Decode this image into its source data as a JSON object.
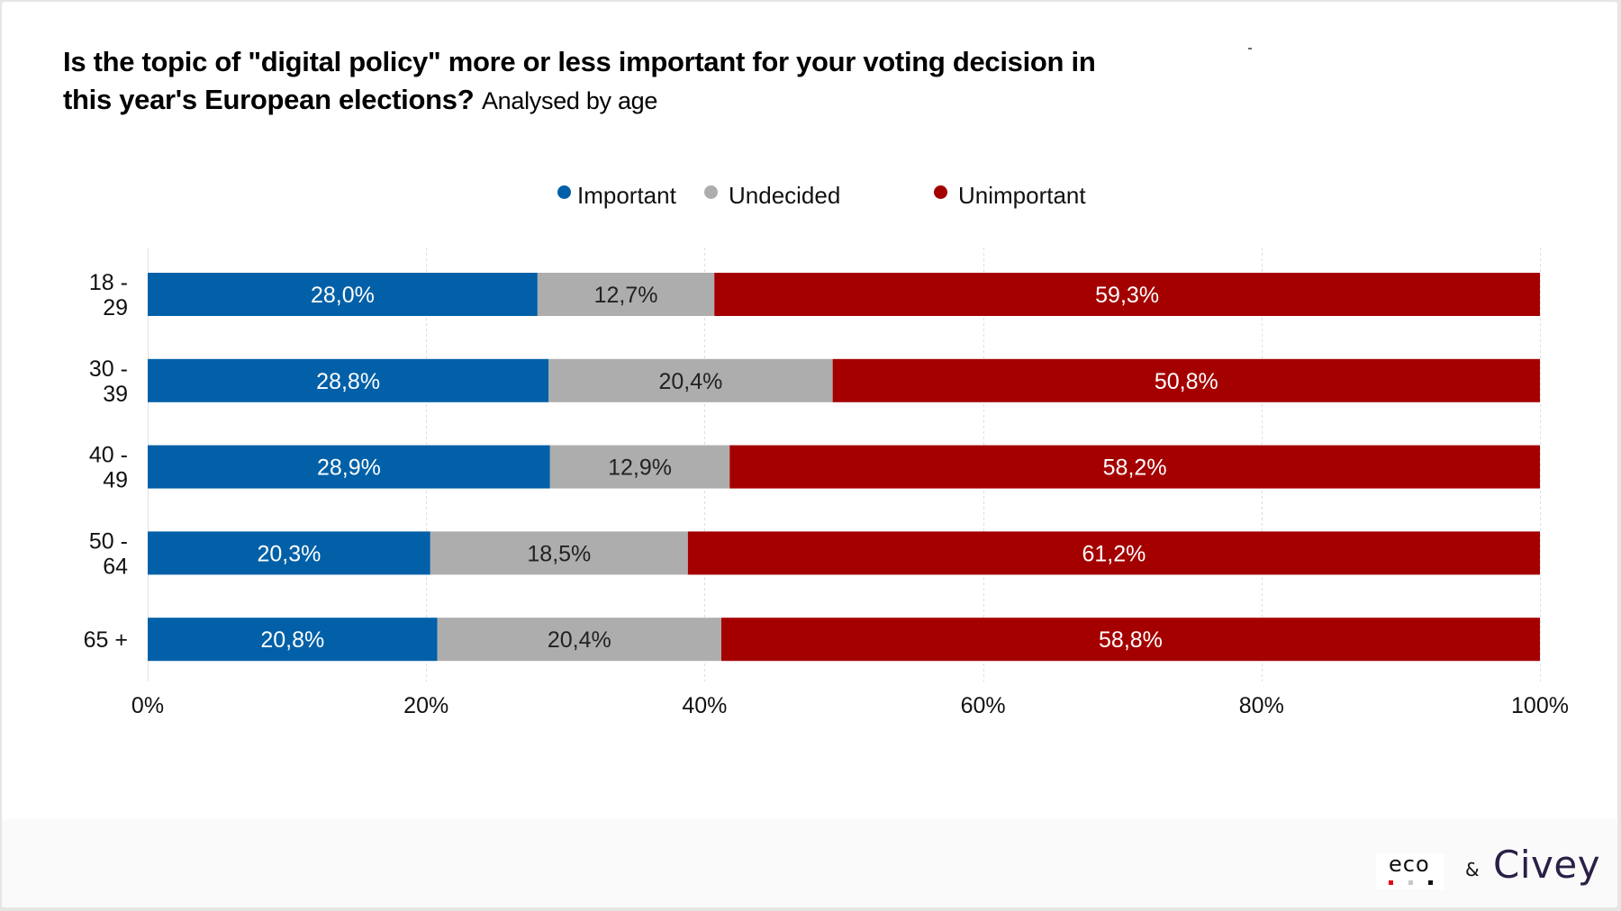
{
  "header": {
    "title": "Is the topic of \"digital policy\" more or less important for your voting decision in this year's European elections?",
    "subtitle": "Analysed by age"
  },
  "colors": {
    "important": "#0160a7",
    "undecided": "#adadad",
    "unimportant": "#a50000",
    "grid": "#dcdcdc",
    "footer_bg": "#fafafa",
    "civey": "#2b1f47"
  },
  "legend": [
    {
      "label": "Important",
      "color": "#0160a7"
    },
    {
      "label": "Undecided",
      "color": "#adadad"
    },
    {
      "label": "Unimportant",
      "color": "#a50000"
    }
  ],
  "footer": {
    "eco_logo": "eco",
    "eco_dots": [
      "#e30613",
      "#c8c8c8",
      "#111111"
    ],
    "ampersand": "&",
    "civey_logo": "Civey"
  },
  "chart_data": {
    "type": "bar",
    "orientation": "horizontal",
    "stacked": true,
    "title": "Is the topic of \"digital policy\" more or less important for your voting decision in this year's European elections?",
    "subtitle": "Analysed by age",
    "xlabel": "",
    "ylabel": "",
    "categories": [
      [
        "18 -",
        "29"
      ],
      [
        "30 -",
        "39"
      ],
      [
        "40 -",
        "49"
      ],
      [
        "50 -",
        "64"
      ],
      [
        "65 +"
      ]
    ],
    "series": [
      {
        "name": "Important",
        "color": "#0160a7",
        "label_color": "#ffffff",
        "values": [
          28.0,
          28.8,
          28.9,
          20.3,
          20.8
        ],
        "labels": [
          "28,0%",
          "28,8%",
          "28,9%",
          "20,3%",
          "20,8%"
        ]
      },
      {
        "name": "Undecided",
        "color": "#adadad",
        "label_color": "#222222",
        "values": [
          12.7,
          20.4,
          12.9,
          18.5,
          20.4
        ],
        "labels": [
          "12,7%",
          "20,4%",
          "12,9%",
          "18,5%",
          "20,4%"
        ]
      },
      {
        "name": "Unimportant",
        "color": "#a50000",
        "label_color": "#ffffff",
        "values": [
          59.3,
          50.8,
          58.2,
          61.2,
          58.8
        ],
        "labels": [
          "59,3%",
          "50,8%",
          "58,2%",
          "61,2%",
          "58,8%"
        ]
      }
    ],
    "xlim": [
      0,
      100
    ],
    "xticks": [
      0,
      20,
      40,
      60,
      80,
      100
    ],
    "xtick_labels": [
      "0%",
      "20%",
      "40%",
      "60%",
      "80%",
      "100%"
    ],
    "grid": "vertical dashed",
    "legend_position": "top-center"
  }
}
